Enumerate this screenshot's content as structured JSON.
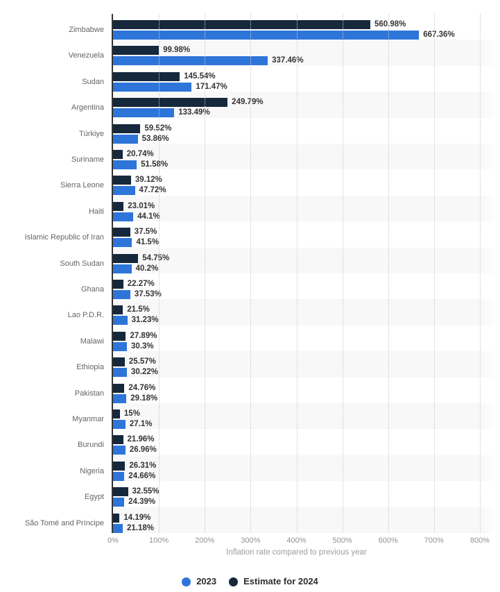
{
  "chart_data": {
    "type": "bar",
    "orientation": "horizontal",
    "title": "",
    "xlabel": "Inflation rate compared to previous year",
    "ylabel": "",
    "xlim": [
      0,
      800
    ],
    "x_ticks": [
      "0%",
      "100%",
      "200%",
      "300%",
      "400%",
      "500%",
      "600%",
      "700%",
      "800%"
    ],
    "grid": true,
    "gridline_style": "dotted",
    "row_band_color": "#f8f8f9",
    "legend_position": "bottom-center",
    "categories": [
      "Zimbabwe",
      "Venezuela",
      "Sudan",
      "Argentina",
      "Türkiye",
      "Suriname",
      "Sierra Leone",
      "Haiti",
      "Islamic Republic of Iran",
      "South Sudan",
      "Ghana",
      "Lao P.D.R.",
      "Malawi",
      "Ethiopia",
      "Pakistan",
      "Myanmar",
      "Burundi",
      "Nigeria",
      "Egypt",
      "São Tomé and Príncipe"
    ],
    "series": [
      {
        "name": "2023",
        "color": "#2e75d9",
        "values": [
          667.36,
          337.46,
          171.47,
          133.49,
          53.86,
          51.58,
          47.72,
          44.1,
          41.5,
          40.2,
          37.53,
          31.23,
          30.3,
          30.22,
          29.18,
          27.1,
          26.96,
          24.66,
          24.39,
          21.18
        ],
        "labels": [
          "667.36%",
          "337.46%",
          "171.47%",
          "133.49%",
          "53.86%",
          "51.58%",
          "47.72%",
          "44.1%",
          "41.5%",
          "40.2%",
          "37.53%",
          "31.23%",
          "30.3%",
          "30.22%",
          "29.18%",
          "27.1%",
          "26.96%",
          "24.66%",
          "24.39%",
          "21.18%"
        ]
      },
      {
        "name": "Estimate for 2024",
        "color": "#16283c",
        "values": [
          560.98,
          99.98,
          145.54,
          249.79,
          59.52,
          20.74,
          39.12,
          23.01,
          37.5,
          54.75,
          22.27,
          21.5,
          27.89,
          25.57,
          24.76,
          15,
          21.96,
          26.31,
          32.55,
          14.19
        ],
        "labels": [
          "560.98%",
          "99.98%",
          "145.54%",
          "249.79%",
          "59.52%",
          "20.74%",
          "39.12%",
          "23.01%",
          "37.5%",
          "54.75%",
          "22.27%",
          "21.5%",
          "27.89%",
          "25.57%",
          "24.76%",
          "15%",
          "21.96%",
          "26.31%",
          "32.55%",
          "14.19%"
        ]
      }
    ]
  },
  "legend": {
    "items": [
      {
        "label": "2023",
        "color": "#2e75d9"
      },
      {
        "label": "Estimate for 2024",
        "color": "#16283c"
      }
    ]
  },
  "colors": {
    "series_2023": "#2e75d9",
    "series_2024": "#16283c",
    "axis_line": "#333333",
    "gridline": "#c9c9cc",
    "row_band": "#f8f8f9",
    "country_label": "#646467",
    "value_label": "#333333",
    "tick_label": "#8f9193",
    "axis_title": "#9b9da0",
    "legend_text": "#2b2b2b"
  }
}
